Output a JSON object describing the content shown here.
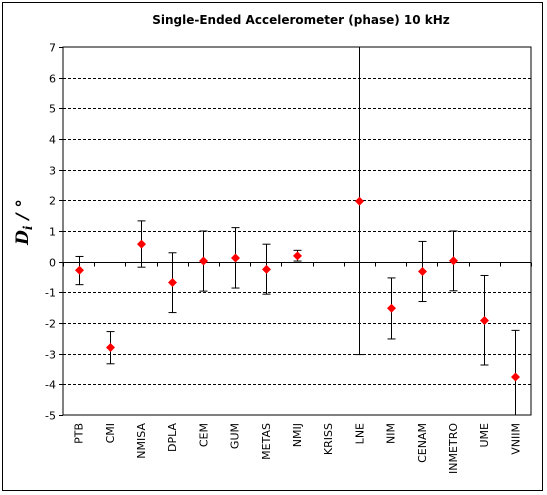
{
  "chart_data": {
    "type": "scatter",
    "title": "Single-Ended  Accelerometer  (phase)   10 kHz",
    "ylabel_main": "D",
    "ylabel_sub": "i",
    "ylabel_unit": " / °",
    "xlabel": "",
    "ylim": [
      -5,
      7
    ],
    "yticks": [
      7,
      6,
      5,
      4,
      3,
      2,
      1,
      0,
      -1,
      -2,
      -3,
      -4,
      -5
    ],
    "grid": true,
    "categories": [
      "PTB",
      "CMI",
      "NMISA",
      "DPLA",
      "CEM",
      "GUM",
      "METAS",
      "NMIJ",
      "KRISS",
      "LNE",
      "NIM",
      "CENAM",
      "INMETRO",
      "UME",
      "VNIIM"
    ],
    "series": [
      {
        "values": [
          -0.28,
          -2.8,
          0.57,
          -0.68,
          0.02,
          0.12,
          -0.25,
          0.19,
          null,
          1.97,
          -1.52,
          -0.32,
          0.03,
          -1.92,
          -3.76
        ],
        "err_low": [
          -0.75,
          -3.33,
          -0.18,
          -1.66,
          -0.96,
          -0.86,
          -1.06,
          0.02,
          null,
          -3.03,
          -2.52,
          -1.3,
          -0.95,
          -3.37,
          -5.0
        ],
        "err_high": [
          0.17,
          -2.28,
          1.33,
          0.29,
          1.0,
          1.11,
          0.57,
          0.37,
          null,
          7.0,
          -0.53,
          0.66,
          1.0,
          -0.45,
          -2.24
        ],
        "marker_color": "#ff0000"
      }
    ]
  }
}
